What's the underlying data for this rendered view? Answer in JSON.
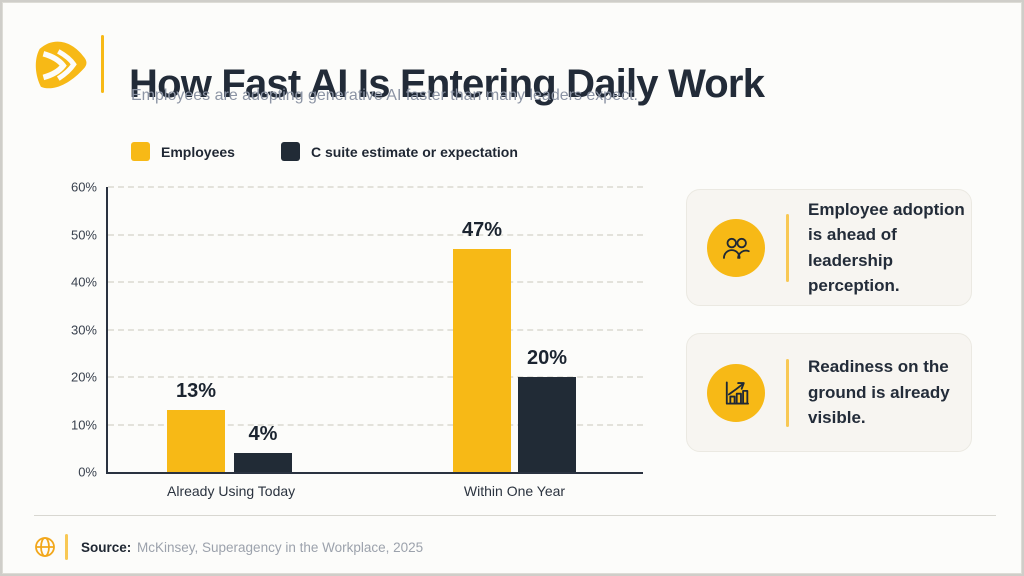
{
  "page": {
    "title": "How Fast AI Is Entering Daily Work",
    "subtitle": "Employees are adopting generative AI faster than many leaders expect."
  },
  "chart_data": {
    "type": "bar",
    "categories": [
      "Already Using Today",
      "Within One Year"
    ],
    "series": [
      {
        "name": "Employees",
        "values": [
          13,
          47
        ],
        "color": "#F7B916"
      },
      {
        "name": "C suite estimate or expectation",
        "values": [
          4,
          20
        ],
        "color": "#212B36"
      }
    ],
    "value_suffix": "%",
    "title": "",
    "xlabel": "",
    "ylabel": "",
    "ylim": [
      0,
      60
    ],
    "yticks": [
      0,
      10,
      20,
      30,
      40,
      50,
      60
    ],
    "ytick_suffix": "%",
    "grid": "dashed-horizontal",
    "legend_position": "top-left"
  },
  "insights": [
    {
      "icon": "people-icon",
      "text": "Employee adoption is ahead of leadership perception."
    },
    {
      "icon": "growth-chart-icon",
      "text": "Readiness on the ground is already visible."
    }
  ],
  "footer": {
    "source_label": "Source:",
    "source_text": "McKinsey, Superagency in the Workplace, 2025"
  },
  "colors": {
    "accent_yellow": "#F7B916",
    "dark_navy": "#212B36",
    "subtitle_gray": "#8C94A4",
    "card_bg": "#F7F5F1"
  }
}
